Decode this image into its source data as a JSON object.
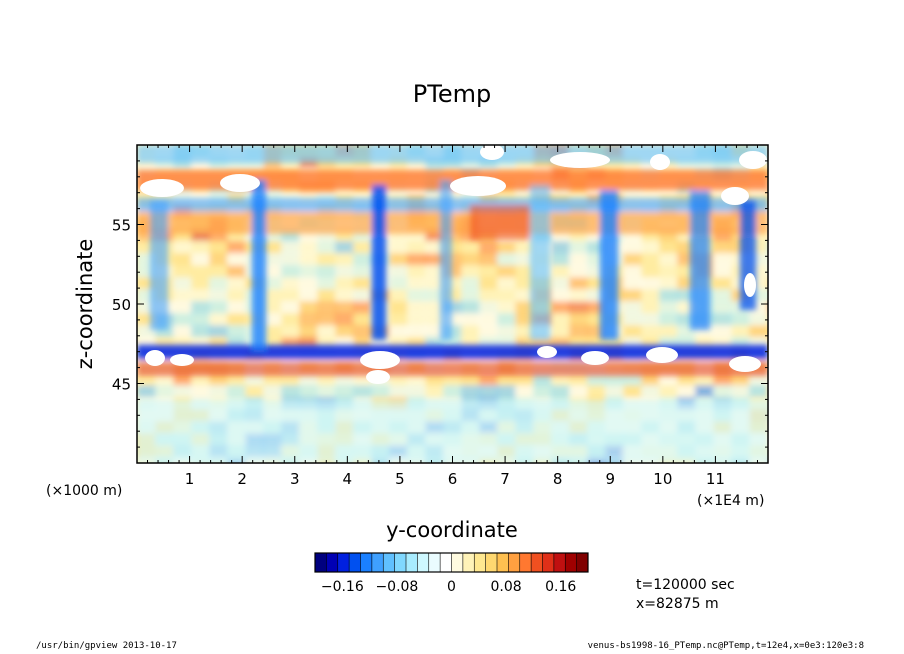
{
  "chart_data": {
    "type": "heatmap",
    "title": "PTemp",
    "xlabel": "y-coordinate",
    "ylabel": "z-coordinate",
    "x_unit": "(×1E4 m)",
    "y_unit": "(×1000 m)",
    "xlim": [
      0,
      12
    ],
    "ylim": [
      40,
      60
    ],
    "x_ticks": [
      "1",
      "2",
      "3",
      "4",
      "5",
      "6",
      "7",
      "8",
      "9",
      "10",
      "11"
    ],
    "y_ticks": [
      "45",
      "50",
      "55"
    ],
    "x_tick_values": [
      1,
      2,
      3,
      4,
      5,
      6,
      7,
      8,
      9,
      10,
      11
    ],
    "y_tick_values": [
      45,
      50,
      55
    ],
    "colorbar": {
      "range": [
        -0.2,
        0.2
      ],
      "tick_labels": [
        "−0.16",
        "−0.08",
        "0",
        "0.08",
        "0.16"
      ],
      "tick_values": [
        -0.16,
        -0.08,
        0,
        0.08,
        0.16
      ],
      "colors": [
        "#00007f",
        "#0000b4",
        "#0020e0",
        "#0050f0",
        "#1a80ff",
        "#3fa0ff",
        "#60c0ff",
        "#80d8ff",
        "#a8ecff",
        "#cef8ff",
        "#eafcff",
        "#ffffff",
        "#fffbe0",
        "#fff3b8",
        "#ffe890",
        "#ffd870",
        "#ffc050",
        "#ffa040",
        "#ff7830",
        "#f05020",
        "#e03018",
        "#c01010",
        "#a00000",
        "#800000"
      ]
    },
    "annotations": [
      "t=120000 sec",
      "x=82875 m"
    ],
    "out_of_range_color": "#ffffff"
  },
  "footer": {
    "left": "/usr/bin/gpview   2013-10-17",
    "right": "venus-bs1998-16_PTemp.nc@PTemp,t=12e4,x=0e3:120e3:8"
  }
}
